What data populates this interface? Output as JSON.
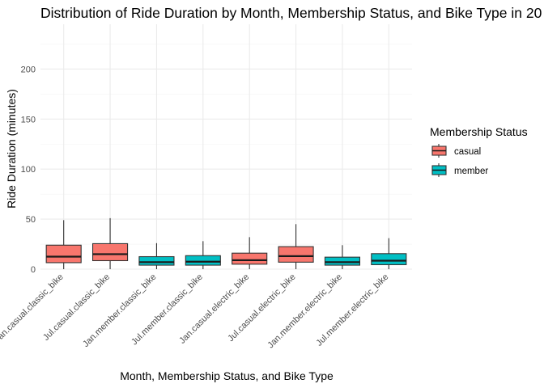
{
  "chart_data": {
    "type": "boxplot",
    "title": "Distribution of Ride Duration by Month, Membership Status, and Bike Type in 20",
    "xlabel": "Month, Membership Status, and Bike Type",
    "ylabel": "Ride Duration (minutes)",
    "ylim": [
      0,
      240
    ],
    "yticks": [
      0,
      50,
      100,
      150,
      200
    ],
    "grid": true,
    "legend": {
      "title": "Membership Status",
      "placement": "right",
      "entries": [
        {
          "label": "casual",
          "color": "#F8766D"
        },
        {
          "label": "member",
          "color": "#00BFC4"
        }
      ]
    },
    "categories": [
      "Jan.casual.classic_bike",
      "Jul.casual.classic_bike",
      "Jan.member.classic_bike",
      "Jul.member.classic_bike",
      "Jan.casual.electric_bike",
      "Jul.casual.electric_bike",
      "Jan.member.electric_bike",
      "Jul.member.electric_bike"
    ],
    "boxes": [
      {
        "group": "casual",
        "whisker_low": 0,
        "q1": 6.5,
        "median": 12.5,
        "q3": 24,
        "whisker_high": 49
      },
      {
        "group": "casual",
        "whisker_low": 0,
        "q1": 8.5,
        "median": 15,
        "q3": 25.5,
        "whisker_high": 51
      },
      {
        "group": "member",
        "whisker_low": 0,
        "q1": 4,
        "median": 7,
        "q3": 12.5,
        "whisker_high": 26
      },
      {
        "group": "member",
        "whisker_low": 0,
        "q1": 4,
        "median": 7.5,
        "q3": 13.5,
        "whisker_high": 28
      },
      {
        "group": "casual",
        "whisker_low": 0,
        "q1": 5,
        "median": 9,
        "q3": 16,
        "whisker_high": 32
      },
      {
        "group": "casual",
        "whisker_low": 0,
        "q1": 7,
        "median": 13,
        "q3": 22.5,
        "whisker_high": 45
      },
      {
        "group": "member",
        "whisker_low": 0,
        "q1": 4,
        "median": 7,
        "q3": 12,
        "whisker_high": 24
      },
      {
        "group": "member",
        "whisker_low": 0,
        "q1": 4.5,
        "median": 8.5,
        "q3": 15.5,
        "whisker_high": 31
      }
    ]
  }
}
